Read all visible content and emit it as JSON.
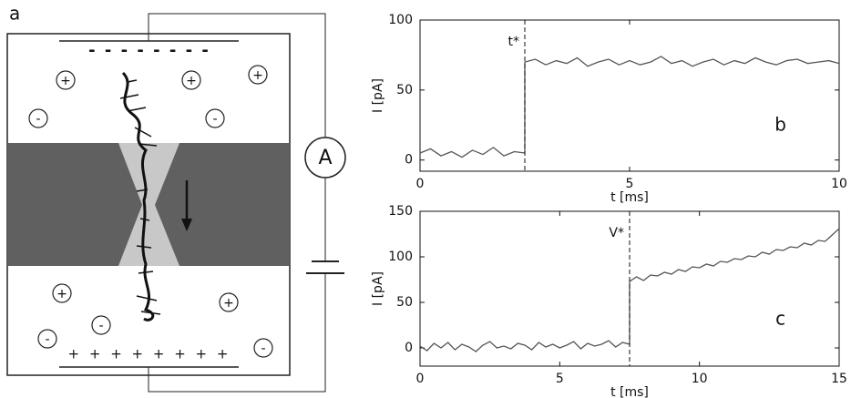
{
  "diagram": {
    "panel_label": "a",
    "top_charges": "- - - - - - - -",
    "bottom_charges": "+ + + + + + + +",
    "ammeter": "A",
    "ions": [
      "+",
      "+",
      "+",
      "-",
      "-",
      "+",
      "+",
      "-",
      "-",
      "-"
    ]
  },
  "chart_data": [
    {
      "type": "line",
      "panel_label": "b",
      "x_label": "t [ms]",
      "y_label": "I [pA]",
      "x": [
        0,
        0.25,
        0.5,
        0.75,
        1,
        1.25,
        1.5,
        1.75,
        2,
        2.25,
        2.5,
        2.5,
        2.75,
        3,
        3.25,
        3.5,
        3.75,
        4,
        4.25,
        4.5,
        4.75,
        5,
        5.25,
        5.5,
        5.75,
        6,
        6.25,
        6.5,
        6.75,
        7,
        7.25,
        7.5,
        7.75,
        8,
        8.25,
        8.5,
        8.75,
        9,
        9.25,
        9.5,
        9.75,
        10
      ],
      "series": [
        {
          "color": "#555555",
          "values": [
            5,
            8,
            3,
            6,
            2,
            7,
            4,
            9,
            3,
            6,
            5,
            70,
            72,
            68,
            71,
            69,
            73,
            67,
            70,
            72,
            68,
            71,
            68,
            70,
            74,
            69,
            71,
            67,
            70,
            72,
            68,
            71,
            69,
            73,
            70,
            68,
            71,
            72,
            69,
            70,
            71,
            69
          ]
        }
      ],
      "annotations": [
        {
          "text": "t*",
          "x": 2.5
        }
      ],
      "xlim": [
        0,
        10
      ],
      "xticks": [
        0,
        5,
        10
      ],
      "ylim": [
        -8,
        100
      ],
      "yticks": [
        0,
        50,
        100
      ]
    },
    {
      "type": "line",
      "panel_label": "c",
      "x_label": "t [ms]",
      "y_label": "I [pA]",
      "x": [
        0,
        0.25,
        0.5,
        0.75,
        1,
        1.25,
        1.5,
        1.75,
        2,
        2.25,
        2.5,
        2.75,
        3,
        3.25,
        3.5,
        3.75,
        4,
        4.25,
        4.5,
        4.75,
        5,
        5.25,
        5.5,
        5.75,
        6,
        6.25,
        6.5,
        6.75,
        7,
        7.25,
        7.5,
        7.5,
        7.75,
        8,
        8.25,
        8.5,
        8.75,
        9,
        9.25,
        9.5,
        9.75,
        10,
        10.25,
        10.5,
        10.75,
        11,
        11.25,
        11.5,
        11.75,
        12,
        12.25,
        12.5,
        12.75,
        13,
        13.25,
        13.5,
        13.75,
        14,
        14.25,
        14.5,
        14.75,
        15
      ],
      "series": [
        {
          "color": "#555555",
          "values": [
            2,
            -3,
            5,
            0,
            6,
            -2,
            4,
            1,
            -4,
            3,
            7,
            0,
            2,
            -1,
            5,
            3,
            -2,
            6,
            1,
            4,
            0,
            3,
            7,
            -1,
            5,
            2,
            4,
            8,
            1,
            6,
            4,
            73,
            78,
            74,
            80,
            79,
            83,
            81,
            86,
            84,
            89,
            88,
            92,
            90,
            95,
            94,
            98,
            97,
            101,
            100,
            105,
            103,
            108,
            107,
            111,
            110,
            115,
            113,
            118,
            117,
            124,
            131
          ]
        }
      ],
      "annotations": [
        {
          "text": "V*",
          "x": 7.5
        }
      ],
      "xlim": [
        0,
        15
      ],
      "xticks": [
        0,
        5,
        10,
        15
      ],
      "ylim": [
        -20,
        150
      ],
      "yticks": [
        0,
        50,
        100,
        150
      ]
    }
  ]
}
